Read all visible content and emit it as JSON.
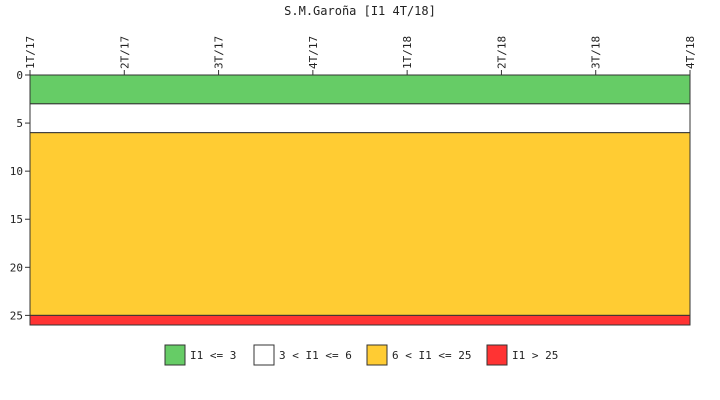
{
  "chart_data": {
    "type": "area",
    "title": "S.M.Garoña [I1 4T/18]",
    "xlabel": "",
    "ylabel": "",
    "categories": [
      "1T/17",
      "2T/17",
      "3T/17",
      "4T/17",
      "1T/18",
      "2T/18",
      "3T/18",
      "4T/18"
    ],
    "y_axis_inverted": true,
    "ylim": [
      0,
      26
    ],
    "yticks": [
      0,
      5,
      10,
      15,
      20,
      25
    ],
    "grid": false,
    "legend_position": "bottom",
    "bands": [
      {
        "name": "I1 <= 3",
        "from": 0,
        "to": 3,
        "color": "#66cc66"
      },
      {
        "name": "3 < I1 <= 6",
        "from": 3,
        "to": 6,
        "color": "#ffffff"
      },
      {
        "name": "6 < I1 <= 25",
        "from": 6,
        "to": 25,
        "color": "#ffcc33"
      },
      {
        "name": "I1 > 25",
        "from": 25,
        "to": 26,
        "color": "#ff3333"
      }
    ]
  }
}
